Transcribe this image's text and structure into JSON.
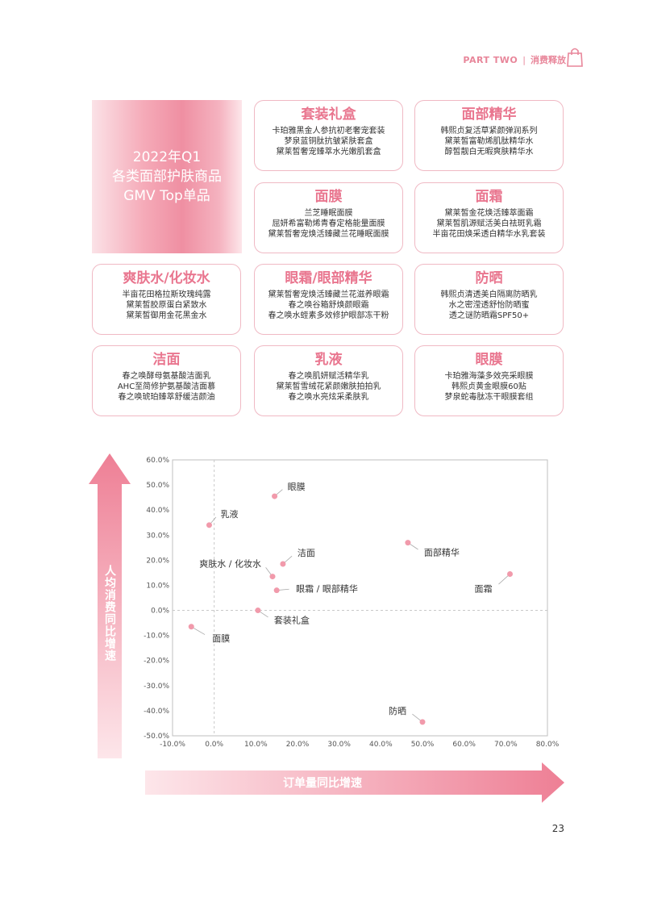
{
  "header": {
    "part": "PART TWO",
    "separator": "|",
    "section": "消费释放"
  },
  "title": {
    "line1": "2022年Q1",
    "line2": "各类面部护肤商品",
    "line3": "GMV Top单品"
  },
  "cards": [
    {
      "title": "套装礼盒",
      "items": [
        "卡珀雅黑金人参抗初老奢宠套装",
        "梦泉蓝铜肽抗皱紧肤套盒",
        "黛莱皙奢宠臻萃水光嫩肌套盒"
      ]
    },
    {
      "title": "面部精华",
      "items": [
        "韩熙贞复活草紧颜弹润系列",
        "黛莱皙富勒烯肌肽精华水",
        "醇皙靓白无暇爽肤精华水"
      ]
    },
    {
      "title": "面膜",
      "items": [
        "兰芝睡眠面膜",
        "屈妍希富勒烯青春定格能量面膜",
        "黛莱皙奢宠焕活臻藏兰花睡眠面膜"
      ]
    },
    {
      "title": "面霜",
      "items": [
        "黛莱皙金花焕活臻萃面霜",
        "黛莱皙肌源赋活美白祛斑乳霜",
        "半亩花田焕采透白精华水乳套装"
      ]
    },
    {
      "title": "爽肤水/化妆水",
      "items": [
        "半亩花田格拉斯玫瑰纯露",
        "黛莱皙胶原蛋白紧致水",
        "黛莱皙御用金花黑金水"
      ]
    },
    {
      "title": "眼霜/眼部精华",
      "items": [
        "黛莱皙奢宠焕活臻藏兰花滋养眼霜",
        "春之唤谷箱舒焕颜眼霜",
        "春之唤水蛭素多效修护眼部冻干粉"
      ]
    },
    {
      "title": "防晒",
      "items": [
        "韩熙贞清透美白隔离防晒乳",
        "水之密滢透舒怡防晒蜜",
        "透之谜防晒霜SPF50+"
      ]
    },
    {
      "title": "洁面",
      "items": [
        "春之唤酵母氨基酸洁面乳",
        "AHC至简修护氨基酸洁面慕",
        "春之唤琥珀臻萃舒缓洁颜油"
      ]
    },
    {
      "title": "乳液",
      "items": [
        "春之唤肌妍赋活精华乳",
        "黛莱皙雪绒花紧颜嫩肤拍拍乳",
        "春之唤水亮炫采柔肤乳"
      ]
    },
    {
      "title": "眼膜",
      "items": [
        "卡珀雅海藻多效亮采眼膜",
        "韩熙贞黄金眼膜60贴",
        "梦泉蛇毒肽冻干眼膜套组"
      ]
    }
  ],
  "chart_data": {
    "type": "scatter",
    "xlabel": "订单量同比增速",
    "ylabel": "人均消费同比增速",
    "xlim": [
      -10,
      80
    ],
    "ylim": [
      -50,
      60
    ],
    "x_ticks": [
      "-10.0%",
      "0.0%",
      "10.0%",
      "20.0%",
      "30.0%",
      "40.0%",
      "50.0%",
      "60.0%",
      "70.0%",
      "80.0%"
    ],
    "y_ticks": [
      "60.0%",
      "50.0%",
      "40.0%",
      "30.0%",
      "20.0%",
      "10.0%",
      "0.0%",
      "-10.0%",
      "-20.0%",
      "-30.0%",
      "-40.0%",
      "-50.0%"
    ],
    "points": [
      {
        "label": "眼膜",
        "x": 14.5,
        "y": 45.5
      },
      {
        "label": "乳液",
        "x": -1.2,
        "y": 34.0
      },
      {
        "label": "洁面",
        "x": 16.5,
        "y": 18.5
      },
      {
        "label": "爽肤水 / 化妆水",
        "x": 14.0,
        "y": 13.5
      },
      {
        "label": "眼霜 / 眼部精华",
        "x": 15.0,
        "y": 8.0
      },
      {
        "label": "面部精华",
        "x": 46.5,
        "y": 27.0
      },
      {
        "label": "面霜",
        "x": 71.0,
        "y": 14.5
      },
      {
        "label": "套装礼盒",
        "x": 10.5,
        "y": 0.0
      },
      {
        "label": "面膜",
        "x": -5.5,
        "y": -6.5
      },
      {
        "label": "防晒",
        "x": 50.0,
        "y": -44.5
      }
    ],
    "colors": {
      "point": "#f19aab",
      "grid": "#c8c8c8",
      "arrow": "#ee7f95"
    }
  },
  "page_number": "23"
}
